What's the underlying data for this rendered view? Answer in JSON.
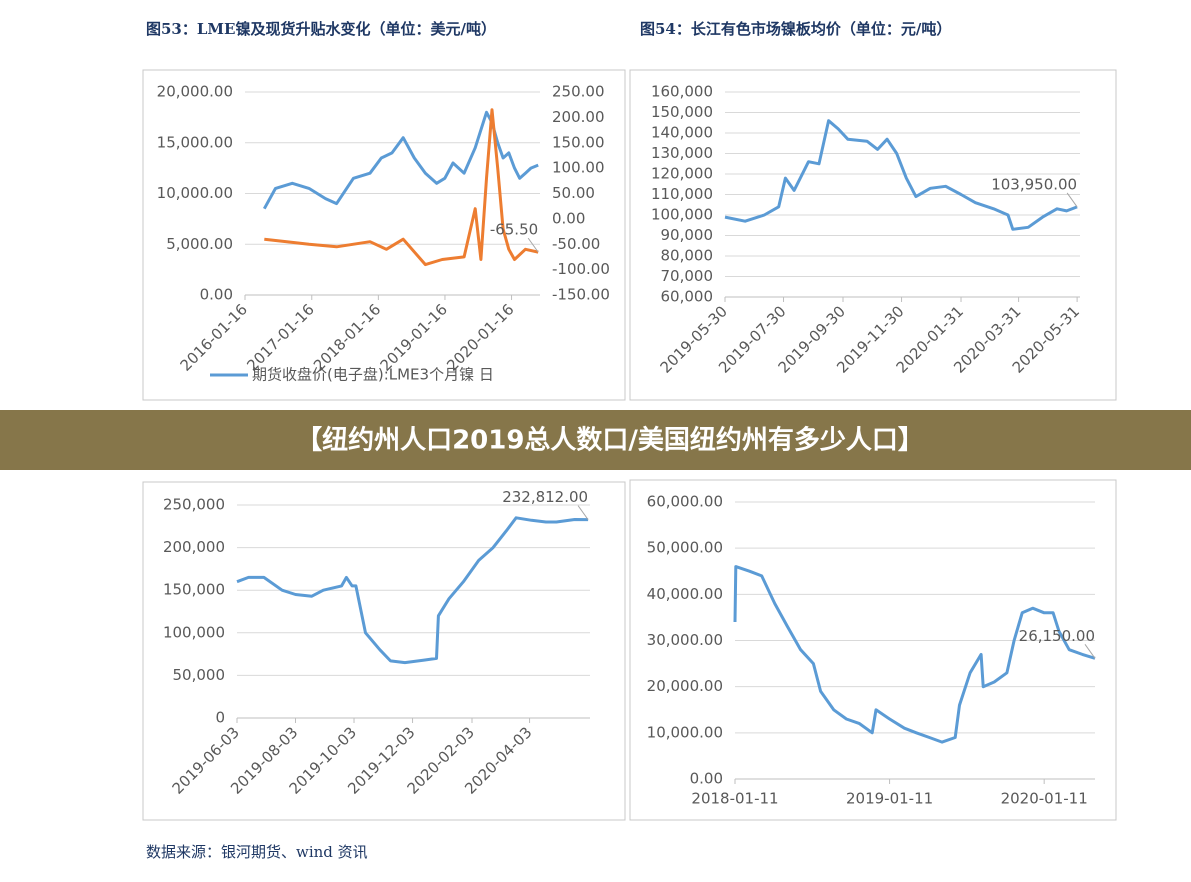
{
  "header_titles": [
    "图53：LME镍及现货升贴水变化（单位：美元/吨）",
    "图54：长江有色市场镍板均价（单位：元/吨）"
  ],
  "banner": "【纽约州人口2019总人数口/美国纽约州有多少人口】",
  "source": "数据来源：银河期货、wind 资讯",
  "chart_data": [
    {
      "type": "line",
      "grid": true,
      "xlim": [
        "2016-01-16",
        "2020-06-20"
      ],
      "xticks": [
        "2016-01-16",
        "2017-01-16",
        "2018-01-16",
        "2019-01-16",
        "2020-01-16"
      ],
      "ylim": [
        0,
        20000
      ],
      "yticks": [
        {
          "value": 0,
          "label": "0.00"
        },
        {
          "value": 5000,
          "label": "5,000.00"
        },
        {
          "value": 10000,
          "label": "10,000.00"
        },
        {
          "value": 15000,
          "label": "15,000.00"
        },
        {
          "value": 20000,
          "label": "20,000.00"
        }
      ],
      "y2lim": [
        -150,
        250
      ],
      "y2ticks": [
        {
          "value": -150,
          "label": "-150.00"
        },
        {
          "value": -100,
          "label": "-100.00"
        },
        {
          "value": -50,
          "label": "-50.00"
        },
        {
          "value": 0,
          "label": "0.00"
        },
        {
          "value": 50,
          "label": "50.00"
        },
        {
          "value": 100,
          "label": "100.00"
        },
        {
          "value": 150,
          "label": "150.00"
        },
        {
          "value": 200,
          "label": "200.00"
        },
        {
          "value": 250,
          "label": "250.00"
        }
      ],
      "annotation": "-65.50",
      "series": [
        {
          "name": "期货收盘价(电子盘):LME3个月镍 日",
          "color": "#5b9bd5",
          "x": [
            "2016-05-01",
            "2016-07-01",
            "2016-10-01",
            "2017-01-01",
            "2017-04-01",
            "2017-06-01",
            "2017-09-01",
            "2017-12-01",
            "2018-02-01",
            "2018-04-01",
            "2018-06-01",
            "2018-08-01",
            "2018-10-01",
            "2018-12-01",
            "2019-01-15",
            "2019-03-01",
            "2019-05-01",
            "2019-07-01",
            "2019-09-01",
            "2019-10-01",
            "2019-11-01",
            "2019-12-01",
            "2020-01-01",
            "2020-02-01",
            "2020-03-01",
            "2020-04-01",
            "2020-05-01",
            "2020-06-10"
          ],
          "values": [
            8500,
            10500,
            11000,
            10500,
            9500,
            9000,
            11500,
            12000,
            13500,
            14000,
            15500,
            13500,
            12000,
            11000,
            11500,
            13000,
            12000,
            14500,
            18000,
            17000,
            15000,
            13500,
            14000,
            12500,
            11500,
            12000,
            12500,
            12800
          ]
        },
        {
          "color": "#ed7d31",
          "axis": "y2",
          "x": [
            "2016-05-01",
            "2016-09-01",
            "2017-01-01",
            "2017-06-01",
            "2017-12-01",
            "2018-03-01",
            "2018-06-01",
            "2018-10-01",
            "2019-01-01",
            "2019-05-01",
            "2019-07-01",
            "2019-08-01",
            "2019-09-01",
            "2019-10-01",
            "2019-11-01",
            "2019-12-01",
            "2020-01-01",
            "2020-02-01",
            "2020-04-01",
            "2020-06-10"
          ],
          "values": [
            -40,
            -45,
            -50,
            -55,
            -45,
            -60,
            -40,
            -90,
            -80,
            -75,
            20,
            -80,
            80,
            215,
            100,
            -20,
            -60,
            -80,
            -60,
            -65.5
          ]
        }
      ]
    },
    {
      "type": "line",
      "grid": true,
      "xlim": [
        "2019-05-30",
        "2020-06-03"
      ],
      "xticks": [
        "2019-05-30",
        "2019-07-30",
        "2019-09-30",
        "2019-11-30",
        "2020-01-31",
        "2020-03-31",
        "2020-05-31"
      ],
      "ylim": [
        60000,
        160000
      ],
      "yticks": [
        {
          "value": 60000,
          "label": "60,000"
        },
        {
          "value": 70000,
          "label": "70,000"
        },
        {
          "value": 80000,
          "label": "80,000"
        },
        {
          "value": 90000,
          "label": "90,000"
        },
        {
          "value": 100000,
          "label": "100,000"
        },
        {
          "value": 110000,
          "label": "110,000"
        },
        {
          "value": 120000,
          "label": "120,000"
        },
        {
          "value": 130000,
          "label": "130,000"
        },
        {
          "value": 140000,
          "label": "140,000"
        },
        {
          "value": 150000,
          "label": "150,000"
        },
        {
          "value": 160000,
          "label": "160,000"
        }
      ],
      "annotation": "103,950.00",
      "series": [
        {
          "color": "#5b9bd5",
          "x": [
            "2019-05-30",
            "2019-06-20",
            "2019-07-10",
            "2019-07-25",
            "2019-08-01",
            "2019-08-10",
            "2019-08-25",
            "2019-09-05",
            "2019-09-15",
            "2019-09-25",
            "2019-10-05",
            "2019-10-25",
            "2019-11-05",
            "2019-11-15",
            "2019-11-25",
            "2019-12-05",
            "2019-12-15",
            "2019-12-30",
            "2020-01-15",
            "2020-01-31",
            "2020-02-15",
            "2020-03-05",
            "2020-03-20",
            "2020-03-25",
            "2020-04-10",
            "2020-04-25",
            "2020-05-10",
            "2020-05-20",
            "2020-05-31"
          ],
          "values": [
            99000,
            97000,
            100000,
            104000,
            118000,
            112000,
            126000,
            125000,
            146000,
            142000,
            137000,
            136000,
            132000,
            137000,
            130000,
            118000,
            109000,
            113000,
            114000,
            110000,
            106000,
            103000,
            100000,
            93000,
            94000,
            99000,
            103000,
            102000,
            103950
          ]
        }
      ]
    },
    {
      "type": "line",
      "grid": true,
      "xlim": [
        "2019-06-03",
        "2020-06-05"
      ],
      "xticks": [
        "2019-06-03",
        "2019-08-03",
        "2019-10-03",
        "2019-12-03",
        "2020-02-03",
        "2020-04-03"
      ],
      "ylim": [
        0,
        250000
      ],
      "yticks": [
        0,
        {
          "value": 50000,
          "label": "50,000"
        },
        {
          "value": 100000,
          "label": "100,000"
        },
        {
          "value": 150000,
          "label": "150,000"
        },
        {
          "value": 200000,
          "label": "200,000"
        },
        {
          "value": 250000,
          "label": "250,000"
        }
      ],
      "annotation": "232,812.00",
      "series": [
        {
          "color": "#5b9bd5",
          "x": [
            "2019-06-03",
            "2019-06-15",
            "2019-07-01",
            "2019-07-20",
            "2019-08-03",
            "2019-08-20",
            "2019-09-01",
            "2019-09-20",
            "2019-09-25",
            "2019-10-01",
            "2019-10-05",
            "2019-10-15",
            "2019-10-30",
            "2019-11-10",
            "2019-11-25",
            "2019-12-15",
            "2019-12-28",
            "2019-12-30",
            "2020-01-10",
            "2020-01-25",
            "2020-02-10",
            "2020-02-25",
            "2020-03-10",
            "2020-03-20",
            "2020-04-05",
            "2020-04-20",
            "2020-05-01",
            "2020-05-20",
            "2020-06-03"
          ],
          "values": [
            160000,
            165000,
            165000,
            150000,
            145000,
            143000,
            150000,
            155000,
            165000,
            155000,
            155000,
            100000,
            80000,
            67000,
            65000,
            68000,
            70000,
            120000,
            140000,
            160000,
            185000,
            200000,
            220000,
            235000,
            232000,
            230000,
            230000,
            233000,
            232812
          ]
        }
      ]
    },
    {
      "type": "line",
      "grid": true,
      "xlim": [
        "2018-01-11",
        "2020-05-10"
      ],
      "xticks": [
        "2018-01-11",
        "2019-01-11",
        "2020-01-11"
      ],
      "ylim": [
        0,
        60000
      ],
      "yticks": [
        {
          "value": 0,
          "label": "0.00"
        },
        {
          "value": 10000,
          "label": "10,000.00"
        },
        {
          "value": 20000,
          "label": "20,000.00"
        },
        {
          "value": 30000,
          "label": "30,000.00"
        },
        {
          "value": 40000,
          "label": "40,000.00"
        },
        {
          "value": 50000,
          "label": "50,000.00"
        },
        {
          "value": 60000,
          "label": "60,000.00"
        }
      ],
      "annotation": "26,150.00",
      "series": [
        {
          "color": "#5b9bd5",
          "x": [
            "2018-01-11",
            "2018-01-13",
            "2018-02-15",
            "2018-03-15",
            "2018-04-15",
            "2018-05-15",
            "2018-06-15",
            "2018-07-15",
            "2018-08-01",
            "2018-09-01",
            "2018-10-01",
            "2018-11-01",
            "2018-12-01",
            "2018-12-10",
            "2019-01-11",
            "2019-02-15",
            "2019-03-15",
            "2019-04-15",
            "2019-05-15",
            "2019-06-15",
            "2019-06-25",
            "2019-07-20",
            "2019-08-15",
            "2019-08-20",
            "2019-09-15",
            "2019-10-15",
            "2019-11-01",
            "2019-11-20",
            "2019-12-15",
            "2020-01-11",
            "2020-02-01",
            "2020-02-15",
            "2020-03-10",
            "2020-04-10",
            "2020-05-10"
          ],
          "values": [
            34000,
            46000,
            45000,
            44000,
            38000,
            33000,
            28000,
            25000,
            19000,
            15000,
            13000,
            12000,
            10000,
            15000,
            13000,
            11000,
            10000,
            9000,
            8000,
            9000,
            16000,
            23000,
            27000,
            20000,
            21000,
            23000,
            30000,
            36000,
            37000,
            36000,
            36000,
            32000,
            28000,
            27000,
            26150
          ]
        }
      ]
    }
  ]
}
